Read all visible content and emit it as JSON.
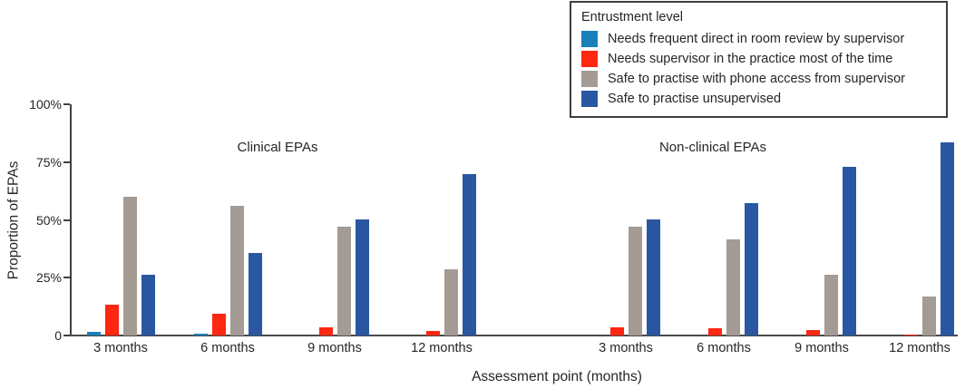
{
  "chart_data": {
    "type": "bar",
    "title": "",
    "xlabel": "Assessment point (months)",
    "ylabel": "Proportion of EPAs",
    "ylim": [
      0,
      100
    ],
    "grid": false,
    "yticks": [
      {
        "value": 0,
        "label": "0"
      },
      {
        "value": 25,
        "label": "25%"
      },
      {
        "value": 50,
        "label": "50%"
      },
      {
        "value": 75,
        "label": "75%"
      },
      {
        "value": 100,
        "label": "100%"
      }
    ],
    "legend": {
      "title": "Entrustment level",
      "position": "top-right",
      "entries": [
        {
          "label": "Needs frequent direct in room review by supervisor",
          "color": "#1980B9"
        },
        {
          "label": "Needs supervisor in the practice most of the time",
          "color": "#FD2712"
        },
        {
          "label": "Safe to practise with phone access from supervisor",
          "color": "#A39B94"
        },
        {
          "label": "Safe to practise unsupervised",
          "color": "#2A57A2"
        }
      ]
    },
    "facets": [
      {
        "label": "Clinical EPAs",
        "categories": [
          "3 months",
          "6 months",
          "9 months",
          "12 months"
        ],
        "series": [
          {
            "name": "Needs frequent direct in room review by supervisor",
            "values": [
              1.4,
              0.6,
              0,
              0
            ]
          },
          {
            "name": "Needs supervisor in the practice most of the time",
            "values": [
              13.3,
              9.4,
              3.6,
              2.1
            ]
          },
          {
            "name": "Safe to practise with phone access from supervisor",
            "values": [
              60.1,
              56.2,
              47.1,
              28.7
            ]
          },
          {
            "name": "Safe to practise unsupervised",
            "values": [
              26.2,
              35.6,
              50.1,
              69.8
            ]
          }
        ]
      },
      {
        "label": "Non-clinical EPAs",
        "categories": [
          "3 months",
          "6 months",
          "9 months",
          "12 months"
        ],
        "series": [
          {
            "name": "Needs frequent direct in room review by supervisor",
            "values": [
              0,
              0,
              0,
              0
            ]
          },
          {
            "name": "Needs supervisor in the practice most of the time",
            "values": [
              3.6,
              3.0,
              2.4,
              0.4
            ]
          },
          {
            "name": "Safe to practise with phone access from supervisor",
            "values": [
              47.1,
              41.4,
              26.4,
              17.0
            ]
          },
          {
            "name": "Safe to practise unsupervised",
            "values": [
              50.3,
              57.1,
              72.8,
              83.6
            ]
          }
        ]
      }
    ]
  }
}
